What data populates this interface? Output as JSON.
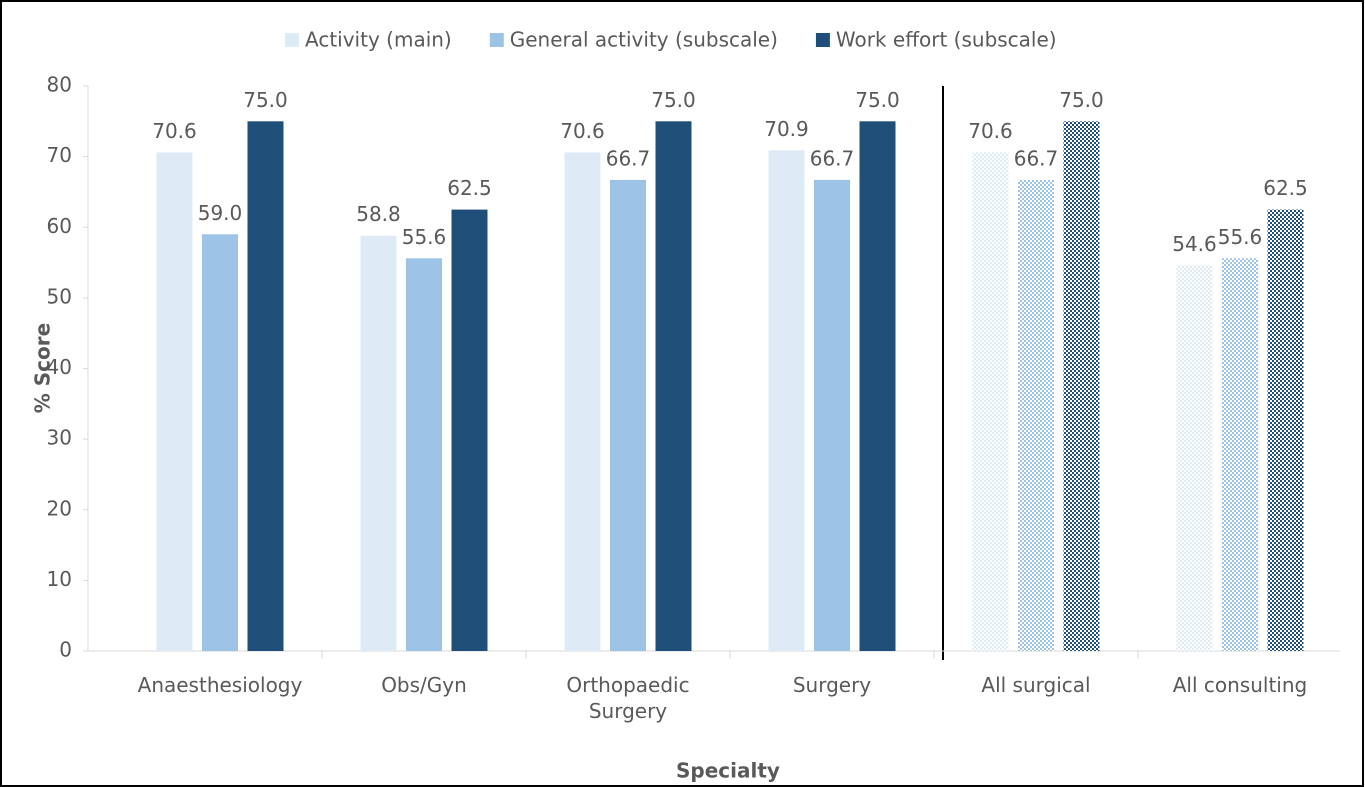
{
  "chart_data": {
    "type": "bar",
    "x_label": "Specialty",
    "y_label": "% Score",
    "categories": [
      "Anaesthesiology",
      "Obs/Gyn",
      "Orthopaedic Surgery",
      "Surgery",
      "All surgical",
      "All consulting"
    ],
    "series": [
      {
        "name": "Activity (main)",
        "color": "#deebf7",
        "values": [
          70.6,
          58.8,
          70.6,
          70.9,
          70.6,
          54.6
        ],
        "value_labels": [
          "70.6",
          "58.8",
          "70.6",
          "70.9",
          "70.6",
          "54.6"
        ]
      },
      {
        "name": "General activity (subscale)",
        "color": "#9dc3e6",
        "values": [
          59.0,
          55.6,
          66.7,
          66.7,
          66.7,
          55.6
        ],
        "value_labels": [
          "59.0",
          "55.6",
          "66.7",
          "66.7",
          "66.7",
          "55.6"
        ]
      },
      {
        "name": "Work effort (subscale)",
        "color": "#1f4e79",
        "values": [
          75.0,
          62.5,
          75.0,
          75.0,
          75.0,
          62.5
        ],
        "value_labels": [
          "75.0",
          "62.5",
          "75.0",
          "75.0",
          "75.0",
          "62.5"
        ]
      }
    ],
    "patterned": [
      false,
      false,
      false,
      false,
      true,
      true
    ],
    "ylim": [
      0,
      80
    ],
    "yticks": [
      0,
      10,
      20,
      30,
      40,
      50,
      60,
      70,
      80
    ],
    "legend": "top"
  }
}
